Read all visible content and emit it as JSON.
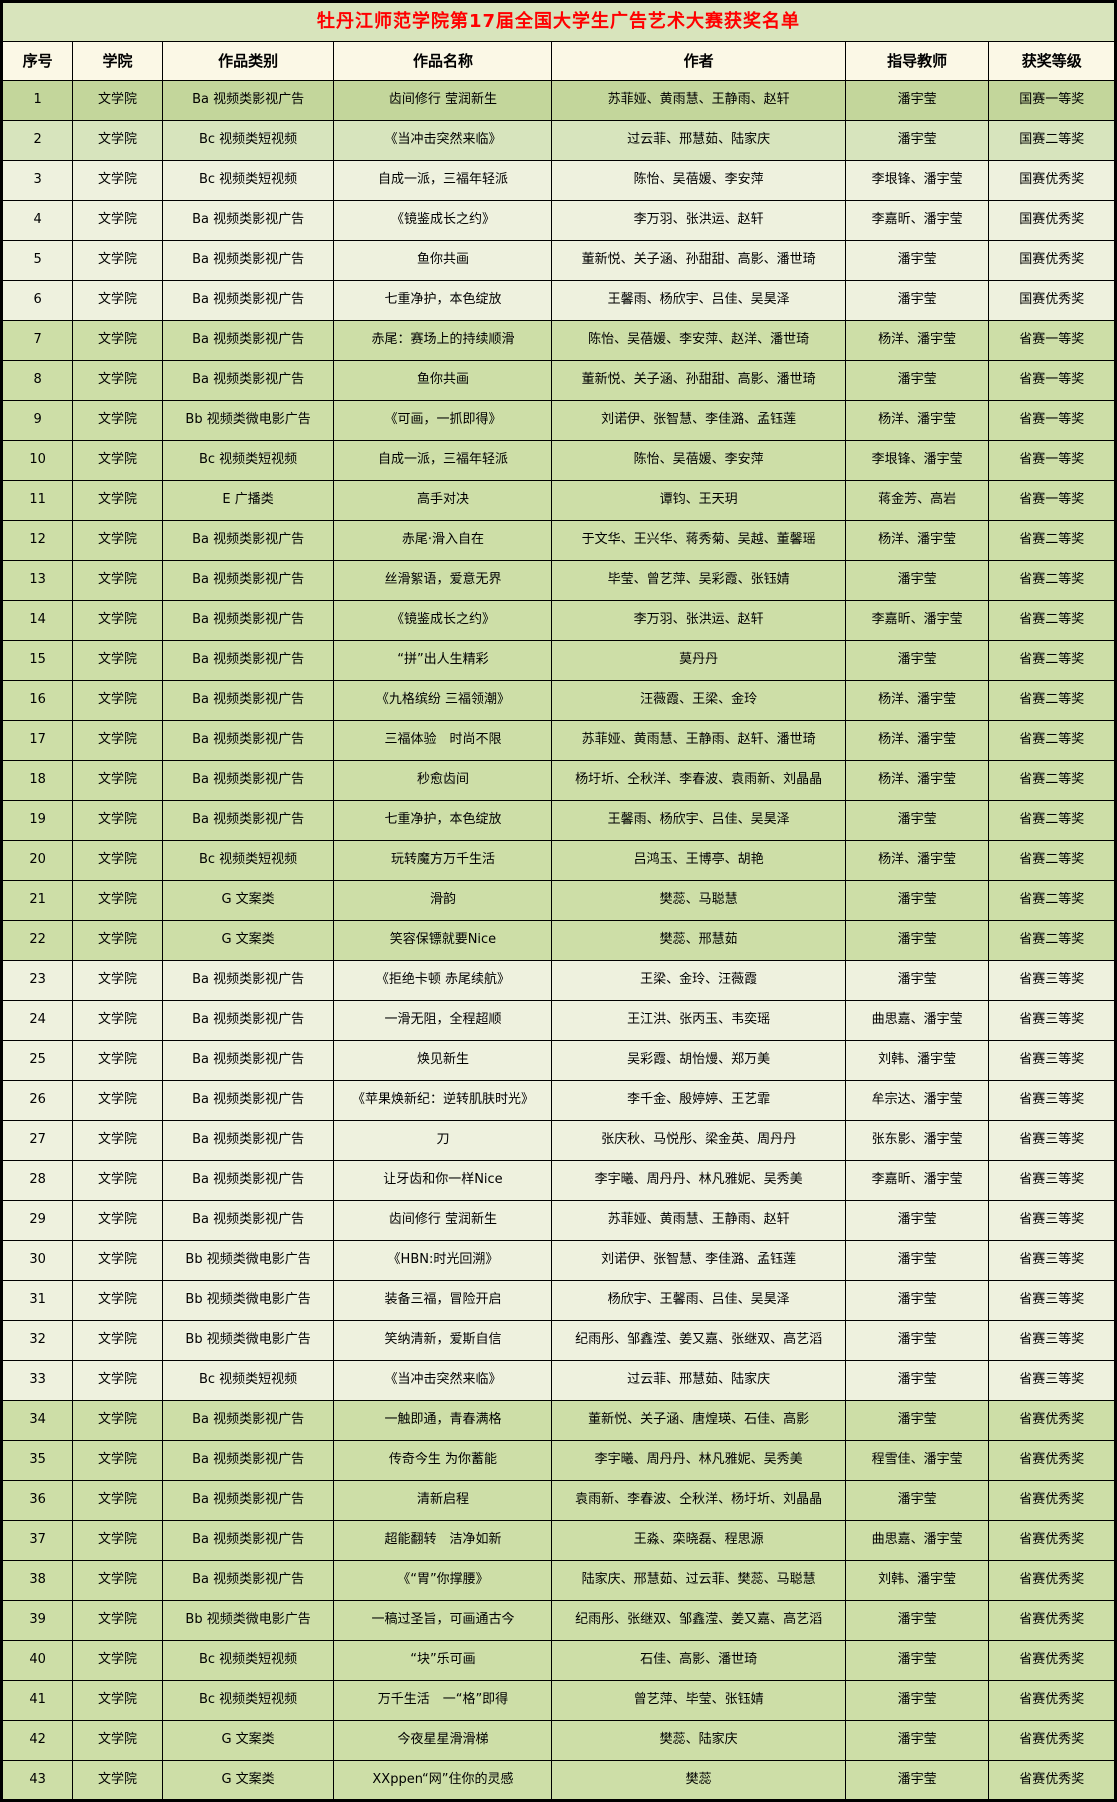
{
  "title": "牡丹江师范学院第17届全国大学生广告艺术大赛获奖名单",
  "columns": [
    "序号",
    "学院",
    "作品类别",
    "作品名称",
    "作者",
    "指导教师",
    "获奖等级"
  ],
  "colors": {
    "title_bg": "#d8e4bc",
    "header_bg": "#fbf8e6",
    "title_text": "#ff0000",
    "border": "#000000",
    "green_dark": "#c3d69b",
    "green_light": "#d7e4bd",
    "green": "#cddea7",
    "cream": "#eef1de"
  },
  "rows": [
    {
      "no": "1",
      "college": "文学院",
      "category": "Ba 视频类影视广告",
      "work": "齿间修行 莹润新生",
      "authors": "苏菲娅、黄雨慧、王静雨、赵轩",
      "advisors": "潘宇莹",
      "award": "国赛一等奖",
      "shade": "green_dark"
    },
    {
      "no": "2",
      "college": "文学院",
      "category": "Bc 视频类短视频",
      "work": "《当冲击突然来临》",
      "authors": "过云菲、邢慧茹、陆家庆",
      "advisors": "潘宇莹",
      "award": "国赛二等奖",
      "shade": "green_light"
    },
    {
      "no": "3",
      "college": "文学院",
      "category": "Bc 视频类短视频",
      "work": "自成一派，三福年轻派",
      "authors": "陈怡、吴蓓媛、李安萍",
      "advisors": "李垠锋、潘宇莹",
      "award": "国赛优秀奖",
      "shade": "cream"
    },
    {
      "no": "4",
      "college": "文学院",
      "category": "Ba 视频类影视广告",
      "work": "《镜鉴成长之约》",
      "authors": "李万羽、张洪运、赵轩",
      "advisors": "李嘉昕、潘宇莹",
      "award": "国赛优秀奖",
      "shade": "cream"
    },
    {
      "no": "5",
      "college": "文学院",
      "category": "Ba 视频类影视广告",
      "work": "鱼你共画",
      "authors": "董新悦、关子涵、孙甜甜、高影、潘世琦",
      "advisors": "潘宇莹",
      "award": "国赛优秀奖",
      "shade": "cream"
    },
    {
      "no": "6",
      "college": "文学院",
      "category": "Ba 视频类影视广告",
      "work": "七重净护，本色绽放",
      "authors": "王馨雨、杨欣宇、吕佳、吴昊泽",
      "advisors": "潘宇莹",
      "award": "国赛优秀奖",
      "shade": "cream"
    },
    {
      "no": "7",
      "college": "文学院",
      "category": "Ba 视频类影视广告",
      "work": "赤尾：赛场上的持续顺滑",
      "authors": "陈怡、吴蓓媛、李安萍、赵洋、潘世琦",
      "advisors": "杨洋、潘宇莹",
      "award": "省赛一等奖",
      "shade": "green"
    },
    {
      "no": "8",
      "college": "文学院",
      "category": "Ba 视频类影视广告",
      "work": "鱼你共画",
      "authors": "董新悦、关子涵、孙甜甜、高影、潘世琦",
      "advisors": "潘宇莹",
      "award": "省赛一等奖",
      "shade": "green"
    },
    {
      "no": "9",
      "college": "文学院",
      "category": "Bb 视频类微电影广告",
      "work": "《可画，一抓即得》",
      "authors": "刘诺伊、张智慧、李佳潞、孟钰莲",
      "advisors": "杨洋、潘宇莹",
      "award": "省赛一等奖",
      "shade": "green"
    },
    {
      "no": "10",
      "college": "文学院",
      "category": "Bc 视频类短视频",
      "work": "自成一派，三福年轻派",
      "authors": "陈怡、吴蓓媛、李安萍",
      "advisors": "李垠锋、潘宇莹",
      "award": "省赛一等奖",
      "shade": "green"
    },
    {
      "no": "11",
      "college": "文学院",
      "category": "E 广播类",
      "work": "高手对决",
      "authors": "谭钧、王天玥",
      "advisors": "蒋金芳、高岩",
      "award": "省赛一等奖",
      "shade": "green"
    },
    {
      "no": "12",
      "college": "文学院",
      "category": "Ba 视频类影视广告",
      "work": "赤尾·滑入自在",
      "authors": "于文华、王兴华、蒋秀菊、吴越、董馨瑶",
      "advisors": "杨洋、潘宇莹",
      "award": "省赛二等奖",
      "shade": "green"
    },
    {
      "no": "13",
      "college": "文学院",
      "category": "Ba 视频类影视广告",
      "work": "丝滑絮语，爱意无界",
      "authors": "毕莹、曾艺萍、吴彩霞、张钰婧",
      "advisors": "潘宇莹",
      "award": "省赛二等奖",
      "shade": "green"
    },
    {
      "no": "14",
      "college": "文学院",
      "category": "Ba 视频类影视广告",
      "work": "《镜鉴成长之约》",
      "authors": "李万羽、张洪运、赵轩",
      "advisors": "李嘉昕、潘宇莹",
      "award": "省赛二等奖",
      "shade": "green"
    },
    {
      "no": "15",
      "college": "文学院",
      "category": "Ba 视频类影视广告",
      "work": "“拼”出人生精彩",
      "authors": "莫丹丹",
      "advisors": "潘宇莹",
      "award": "省赛二等奖",
      "shade": "green"
    },
    {
      "no": "16",
      "college": "文学院",
      "category": "Ba 视频类影视广告",
      "work": "《九格缤纷 三福领潮》",
      "authors": "汪薇霞、王梁、金玲",
      "advisors": "杨洋、潘宇莹",
      "award": "省赛二等奖",
      "shade": "green"
    },
    {
      "no": "17",
      "college": "文学院",
      "category": "Ba 视频类影视广告",
      "work": "三福体验　时尚不限",
      "authors": "苏菲娅、黄雨慧、王静雨、赵轩、潘世琦",
      "advisors": "杨洋、潘宇莹",
      "award": "省赛二等奖",
      "shade": "green"
    },
    {
      "no": "18",
      "college": "文学院",
      "category": "Ba 视频类影视广告",
      "work": "秒愈齿间",
      "authors": "杨圩圻、仝秋洋、李春波、袁雨新、刘晶晶",
      "advisors": "杨洋、潘宇莹",
      "award": "省赛二等奖",
      "shade": "green"
    },
    {
      "no": "19",
      "college": "文学院",
      "category": "Ba 视频类影视广告",
      "work": "七重净护，本色绽放",
      "authors": "王馨雨、杨欣宇、吕佳、吴昊泽",
      "advisors": "潘宇莹",
      "award": "省赛二等奖",
      "shade": "green"
    },
    {
      "no": "20",
      "college": "文学院",
      "category": "Bc 视频类短视频",
      "work": "玩转魔方万千生活",
      "authors": "吕鸿玉、王博亭、胡艳",
      "advisors": "杨洋、潘宇莹",
      "award": "省赛二等奖",
      "shade": "green"
    },
    {
      "no": "21",
      "college": "文学院",
      "category": "G 文案类",
      "work": "滑韵",
      "authors": "樊蕊、马聪慧",
      "advisors": "潘宇莹",
      "award": "省赛二等奖",
      "shade": "green"
    },
    {
      "no": "22",
      "college": "文学院",
      "category": "G 文案类",
      "work": "笑容保镖就要Nice",
      "authors": "樊蕊、邢慧茹",
      "advisors": "潘宇莹",
      "award": "省赛二等奖",
      "shade": "green"
    },
    {
      "no": "23",
      "college": "文学院",
      "category": "Ba 视频类影视广告",
      "work": "《拒绝卡顿 赤尾续航》",
      "authors": "王梁、金玲、汪薇霞",
      "advisors": "潘宇莹",
      "award": "省赛三等奖",
      "shade": "cream"
    },
    {
      "no": "24",
      "college": "文学院",
      "category": "Ba 视频类影视广告",
      "work": "一滑无阻，全程超顺",
      "authors": "王江洪、张丙玉、韦奕瑶",
      "advisors": "曲思嘉、潘宇莹",
      "award": "省赛三等奖",
      "shade": "cream"
    },
    {
      "no": "25",
      "college": "文学院",
      "category": "Ba 视频类影视广告",
      "work": "焕见新生",
      "authors": "吴彩霞、胡怡熳、郑万美",
      "advisors": "刘韩、潘宇莹",
      "award": "省赛三等奖",
      "shade": "cream"
    },
    {
      "no": "26",
      "college": "文学院",
      "category": "Ba 视频类影视广告",
      "work": "《苹果焕新纪：逆转肌肤时光》",
      "authors": "李千金、殷婷婷、王艺霏",
      "advisors": "牟宗达、潘宇莹",
      "award": "省赛三等奖",
      "shade": "cream"
    },
    {
      "no": "27",
      "college": "文学院",
      "category": "Ba 视频类影视广告",
      "work": "刀",
      "authors": "张庆秋、马悦彤、梁金英、周丹丹",
      "advisors": "张东影、潘宇莹",
      "award": "省赛三等奖",
      "shade": "cream"
    },
    {
      "no": "28",
      "college": "文学院",
      "category": "Ba 视频类影视广告",
      "work": "让牙齿和你一样Nice",
      "authors": "李宇曦、周丹丹、林凡雅妮、吴秀美",
      "advisors": "李嘉昕、潘宇莹",
      "award": "省赛三等奖",
      "shade": "cream"
    },
    {
      "no": "29",
      "college": "文学院",
      "category": "Ba 视频类影视广告",
      "work": "齿间修行 莹润新生",
      "authors": "苏菲娅、黄雨慧、王静雨、赵轩",
      "advisors": "潘宇莹",
      "award": "省赛三等奖",
      "shade": "cream"
    },
    {
      "no": "30",
      "college": "文学院",
      "category": "Bb 视频类微电影广告",
      "work": "《HBN:时光回溯》",
      "authors": "刘诺伊、张智慧、李佳潞、孟钰莲",
      "advisors": "潘宇莹",
      "award": "省赛三等奖",
      "shade": "cream"
    },
    {
      "no": "31",
      "college": "文学院",
      "category": "Bb 视频类微电影广告",
      "work": "装备三福，冒险开启",
      "authors": "杨欣宇、王馨雨、吕佳、吴昊泽",
      "advisors": "潘宇莹",
      "award": "省赛三等奖",
      "shade": "cream"
    },
    {
      "no": "32",
      "college": "文学院",
      "category": "Bb 视频类微电影广告",
      "work": "笑纳清新，爱斯自信",
      "authors": "纪雨彤、邹鑫滢、姜又嘉、张继双、高艺滔",
      "advisors": "潘宇莹",
      "award": "省赛三等奖",
      "shade": "cream"
    },
    {
      "no": "33",
      "college": "文学院",
      "category": "Bc 视频类短视频",
      "work": "《当冲击突然来临》",
      "authors": "过云菲、邢慧茹、陆家庆",
      "advisors": "潘宇莹",
      "award": "省赛三等奖",
      "shade": "cream"
    },
    {
      "no": "34",
      "college": "文学院",
      "category": "Ba 视频类影视广告",
      "work": "一触即通，青春满格",
      "authors": "董新悦、关子涵、唐煌瑛、石佳、高影",
      "advisors": "潘宇莹",
      "award": "省赛优秀奖",
      "shade": "green"
    },
    {
      "no": "35",
      "college": "文学院",
      "category": "Ba 视频类影视广告",
      "work": "传奇今生 为你蓄能",
      "authors": "李宇曦、周丹丹、林凡雅妮、吴秀美",
      "advisors": "程雪佳、潘宇莹",
      "award": "省赛优秀奖",
      "shade": "green"
    },
    {
      "no": "36",
      "college": "文学院",
      "category": "Ba 视频类影视广告",
      "work": "清新启程",
      "authors": "袁雨新、李春波、仝秋洋、杨圩圻、刘晶晶",
      "advisors": "潘宇莹",
      "award": "省赛优秀奖",
      "shade": "green"
    },
    {
      "no": "37",
      "college": "文学院",
      "category": "Ba 视频类影视广告",
      "work": "超能翻转　洁净如新",
      "authors": "王淼、栾晓磊、程思源",
      "advisors": "曲思嘉、潘宇莹",
      "award": "省赛优秀奖",
      "shade": "green"
    },
    {
      "no": "38",
      "college": "文学院",
      "category": "Ba 视频类影视广告",
      "work": "《“胃”你撑腰》",
      "authors": "陆家庆、邢慧茹、过云菲、樊蕊、马聪慧",
      "advisors": "刘韩、潘宇莹",
      "award": "省赛优秀奖",
      "shade": "green"
    },
    {
      "no": "39",
      "college": "文学院",
      "category": "Bb 视频类微电影广告",
      "work": "一稿过圣旨，可画通古今",
      "authors": "纪雨彤、张继双、邹鑫滢、姜又嘉、高艺滔",
      "advisors": "潘宇莹",
      "award": "省赛优秀奖",
      "shade": "green"
    },
    {
      "no": "40",
      "college": "文学院",
      "category": "Bc 视频类短视频",
      "work": "“块”乐可画",
      "authors": "石佳、高影、潘世琦",
      "advisors": "潘宇莹",
      "award": "省赛优秀奖",
      "shade": "green"
    },
    {
      "no": "41",
      "college": "文学院",
      "category": "Bc 视频类短视频",
      "work": "万千生活　一“格”即得",
      "authors": "曾艺萍、毕莹、张钰婧",
      "advisors": "潘宇莹",
      "award": "省赛优秀奖",
      "shade": "green"
    },
    {
      "no": "42",
      "college": "文学院",
      "category": "G 文案类",
      "work": "今夜星星滑滑梯",
      "authors": "樊蕊、陆家庆",
      "advisors": "潘宇莹",
      "award": "省赛优秀奖",
      "shade": "green"
    },
    {
      "no": "43",
      "college": "文学院",
      "category": "G 文案类",
      "work": "XXppen“网”住你的灵感",
      "authors": "樊蕊",
      "advisors": "潘宇莹",
      "award": "省赛优秀奖",
      "shade": "green"
    }
  ]
}
